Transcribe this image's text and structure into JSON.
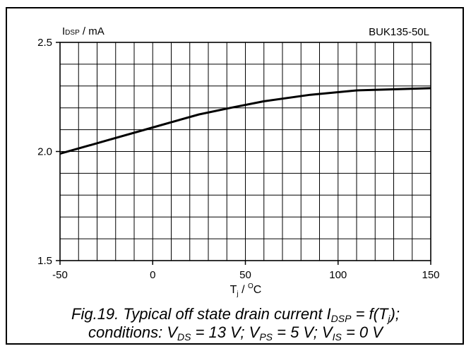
{
  "chart_data": {
    "type": "line",
    "device_label": "BUK135-50L",
    "ylabel": {
      "main": "I",
      "sub": "DSP",
      "unit": " / mA"
    },
    "xlabel": {
      "main": "T",
      "sub": "j",
      "mid": " / ",
      "sup": "O",
      "unit": "C"
    },
    "xlim": [
      -50,
      150
    ],
    "ylim": [
      1.5,
      2.5
    ],
    "x_ticks": [
      {
        "value": -50,
        "label": "-50"
      },
      {
        "value": 0,
        "label": "0"
      },
      {
        "value": 50,
        "label": "50"
      },
      {
        "value": 100,
        "label": "100"
      },
      {
        "value": 150,
        "label": "150"
      }
    ],
    "y_ticks": [
      {
        "value": 1.5,
        "label": "1.5"
      },
      {
        "value": 2.0,
        "label": "2.0"
      },
      {
        "value": 2.5,
        "label": "2.5"
      }
    ],
    "grid": true,
    "grid_step_x": 10,
    "grid_step_y": 0.1,
    "series": [
      {
        "x": [
          -50,
          -25,
          0,
          25,
          42,
          60,
          85,
          110,
          150
        ],
        "y": [
          1.99,
          2.05,
          2.11,
          2.17,
          2.2,
          2.23,
          2.26,
          2.28,
          2.29
        ]
      }
    ]
  },
  "caption": {
    "line1": {
      "t1": "Fig.19.  Typical off state drain current I",
      "s1": "DSP",
      "t2": " = f(T",
      "s2": "j",
      "t3": ");"
    },
    "line2": {
      "t1": "conditions: V",
      "s1": "DS",
      "t2": " = 13 V; V",
      "s2": "PS",
      "t3": " = 5 V; V",
      "s3": "IS",
      "t4": " = 0 V"
    }
  }
}
